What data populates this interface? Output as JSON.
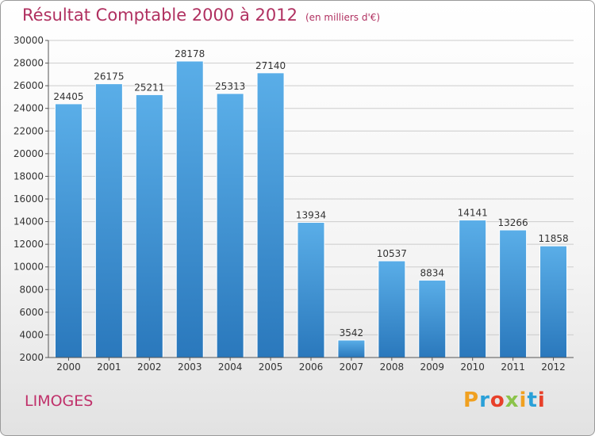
{
  "chart_data": {
    "type": "bar",
    "title": "Résultat Comptable 2000 à 2012",
    "subtitle": "(en milliers d'€)",
    "categories": [
      "2000",
      "2001",
      "2002",
      "2003",
      "2004",
      "2005",
      "2006",
      "2007",
      "2008",
      "2009",
      "2010",
      "2011",
      "2012"
    ],
    "values": [
      24405,
      26175,
      25211,
      28178,
      25313,
      27140,
      13934,
      3542,
      10537,
      8834,
      14141,
      13266,
      11858
    ],
    "ylim": [
      2000,
      30000
    ],
    "yticks": [
      2000,
      4000,
      6000,
      8000,
      10000,
      12000,
      14000,
      16000,
      18000,
      20000,
      22000,
      24000,
      26000,
      28000,
      30000
    ],
    "grid": true,
    "bar_color": "#3b8fd6"
  },
  "footer": {
    "city": "LIMOGES",
    "logo_letters": [
      "P",
      "r",
      "o",
      "x",
      "i",
      "t",
      "i"
    ],
    "logo_colors": [
      "#f0a020",
      "#2aa0d8",
      "#e8402a",
      "#8bc34a",
      "#f0a020",
      "#2aa0d8",
      "#e8402a"
    ]
  }
}
